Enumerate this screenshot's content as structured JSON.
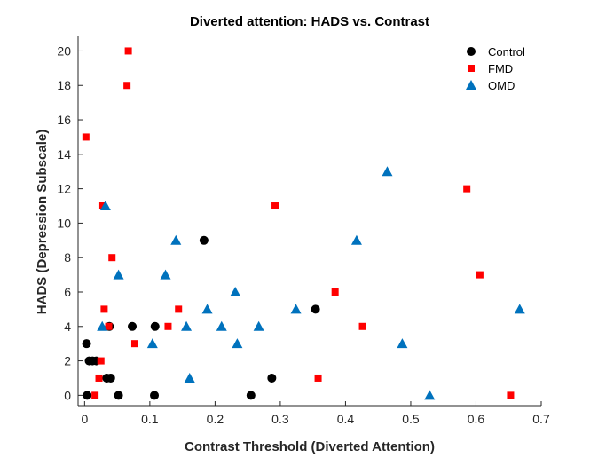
{
  "chart_data": {
    "type": "scatter",
    "title": "Diverted attention: HADS vs. Contrast",
    "xlabel": "Contrast Threshold (Diverted Attention)",
    "ylabel": "HADS (Depression Subscale)",
    "xlim": [
      -0.01,
      0.7
    ],
    "ylim": [
      -0.6,
      20.9
    ],
    "xticks": [
      "0",
      "0.1",
      "0.2",
      "0.3",
      "0.4",
      "0.5",
      "0.6",
      "0.7"
    ],
    "xtick_values": [
      0,
      0.1,
      0.2,
      0.3,
      0.4,
      0.5,
      0.6,
      0.7
    ],
    "yticks": [
      "0",
      "2",
      "4",
      "6",
      "8",
      "10",
      "12",
      "14",
      "16",
      "18",
      "20"
    ],
    "ytick_values": [
      0,
      2,
      4,
      6,
      8,
      10,
      12,
      14,
      16,
      18,
      20
    ],
    "grid": false,
    "legend_position": "top-right",
    "series": [
      {
        "name": "Control",
        "marker": "circle",
        "color": "#000000",
        "points": [
          [
            0.003,
            3
          ],
          [
            0.004,
            0
          ],
          [
            0.007,
            2
          ],
          [
            0.012,
            2
          ],
          [
            0.018,
            2
          ],
          [
            0.034,
            1
          ],
          [
            0.04,
            1
          ],
          [
            0.038,
            4
          ],
          [
            0.052,
            0
          ],
          [
            0.073,
            4
          ],
          [
            0.107,
            0
          ],
          [
            0.108,
            4
          ],
          [
            0.183,
            9
          ],
          [
            0.255,
            0
          ],
          [
            0.287,
            1
          ],
          [
            0.354,
            5
          ]
        ]
      },
      {
        "name": "FMD",
        "marker": "square",
        "color": "#ff0000",
        "points": [
          [
            0.002,
            15
          ],
          [
            0.016,
            0
          ],
          [
            0.022,
            1
          ],
          [
            0.025,
            2
          ],
          [
            0.028,
            11
          ],
          [
            0.03,
            5
          ],
          [
            0.037,
            4
          ],
          [
            0.042,
            8
          ],
          [
            0.065,
            18
          ],
          [
            0.067,
            20
          ],
          [
            0.077,
            3
          ],
          [
            0.128,
            4
          ],
          [
            0.144,
            5
          ],
          [
            0.292,
            11
          ],
          [
            0.358,
            1
          ],
          [
            0.384,
            6
          ],
          [
            0.426,
            4
          ],
          [
            0.586,
            12
          ],
          [
            0.606,
            7
          ],
          [
            0.653,
            0
          ]
        ]
      },
      {
        "name": "OMD",
        "marker": "triangle",
        "color": "#0072bd",
        "points": [
          [
            0.027,
            4
          ],
          [
            0.032,
            11
          ],
          [
            0.052,
            7
          ],
          [
            0.104,
            3
          ],
          [
            0.124,
            7
          ],
          [
            0.14,
            9
          ],
          [
            0.156,
            4
          ],
          [
            0.161,
            1
          ],
          [
            0.188,
            5
          ],
          [
            0.21,
            4
          ],
          [
            0.231,
            6
          ],
          [
            0.234,
            3
          ],
          [
            0.267,
            4
          ],
          [
            0.324,
            5
          ],
          [
            0.417,
            9
          ],
          [
            0.464,
            13
          ],
          [
            0.487,
            3
          ],
          [
            0.529,
            0
          ],
          [
            0.667,
            5
          ]
        ]
      }
    ]
  }
}
